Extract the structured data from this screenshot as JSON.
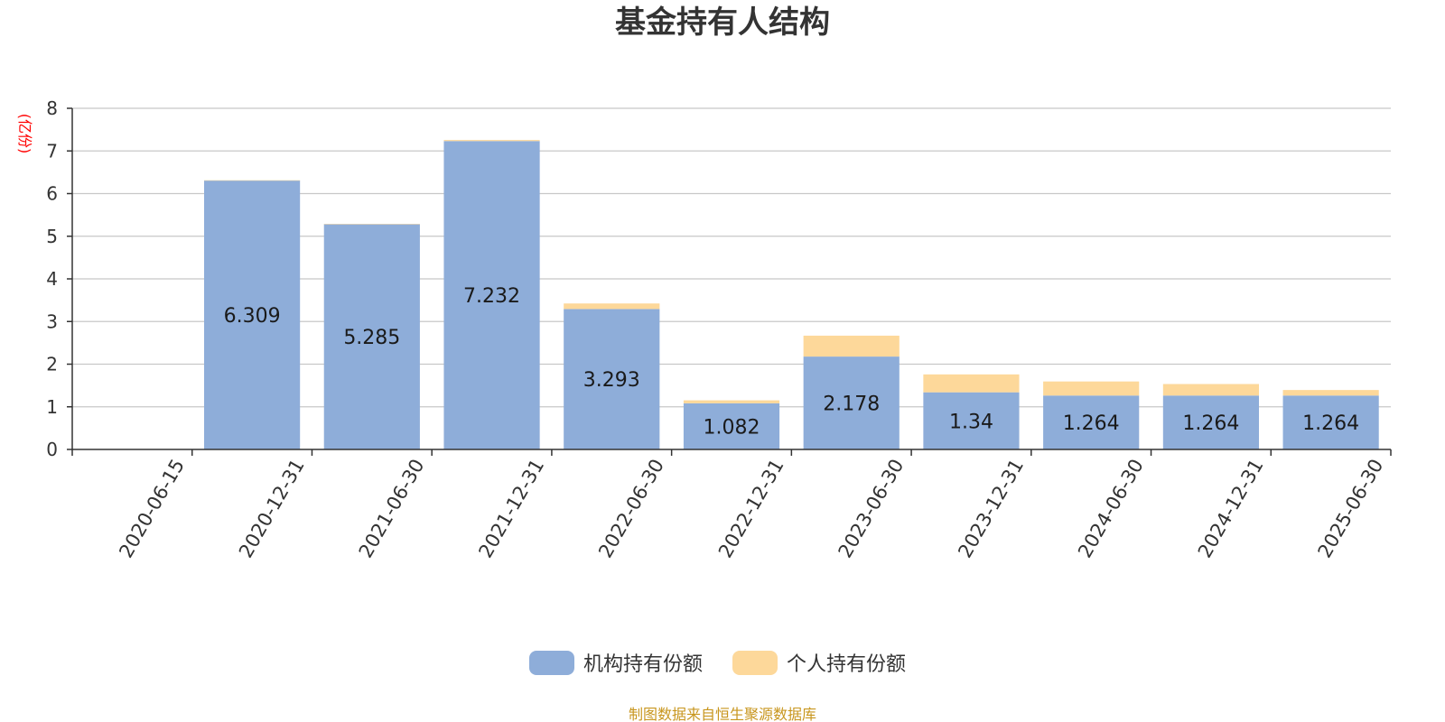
{
  "chart_data": {
    "type": "bar",
    "stacked": true,
    "title": "基金持有人结构",
    "ylabel": "(亿份)",
    "ylim": [
      0,
      8
    ],
    "yticks": [
      0,
      1,
      2,
      3,
      4,
      5,
      6,
      7,
      8
    ],
    "grid": true,
    "legend_position": "bottom",
    "categories": [
      "2020-06-15",
      "2020-12-31",
      "2021-06-30",
      "2021-12-31",
      "2022-06-30",
      "2022-12-31",
      "2023-06-30",
      "2023-12-31",
      "2024-06-30",
      "2024-12-31",
      "2025-06-30"
    ],
    "series": [
      {
        "name": "机构持有份额",
        "color": "#8eadd9",
        "values": [
          0,
          6.309,
          5.285,
          7.232,
          3.293,
          1.082,
          2.178,
          1.34,
          1.264,
          1.264,
          1.264
        ],
        "labels": [
          "",
          "6.309",
          "5.285",
          "7.232",
          "3.293",
          "1.082",
          "2.178",
          "1.34",
          "1.264",
          "1.264",
          "1.264"
        ]
      },
      {
        "name": "个人持有份额",
        "color": "#fdd89a",
        "values": [
          0,
          0.003,
          0.002,
          0.025,
          0.13,
          0.07,
          0.49,
          0.42,
          0.33,
          0.27,
          0.13
        ]
      }
    ]
  },
  "colors": {
    "unit_text": "#ff0000",
    "source_text": "#c8961e",
    "grid": "#c8c8c8",
    "axis": "#333333"
  },
  "source_note": "制图数据来自恒生聚源数据库"
}
